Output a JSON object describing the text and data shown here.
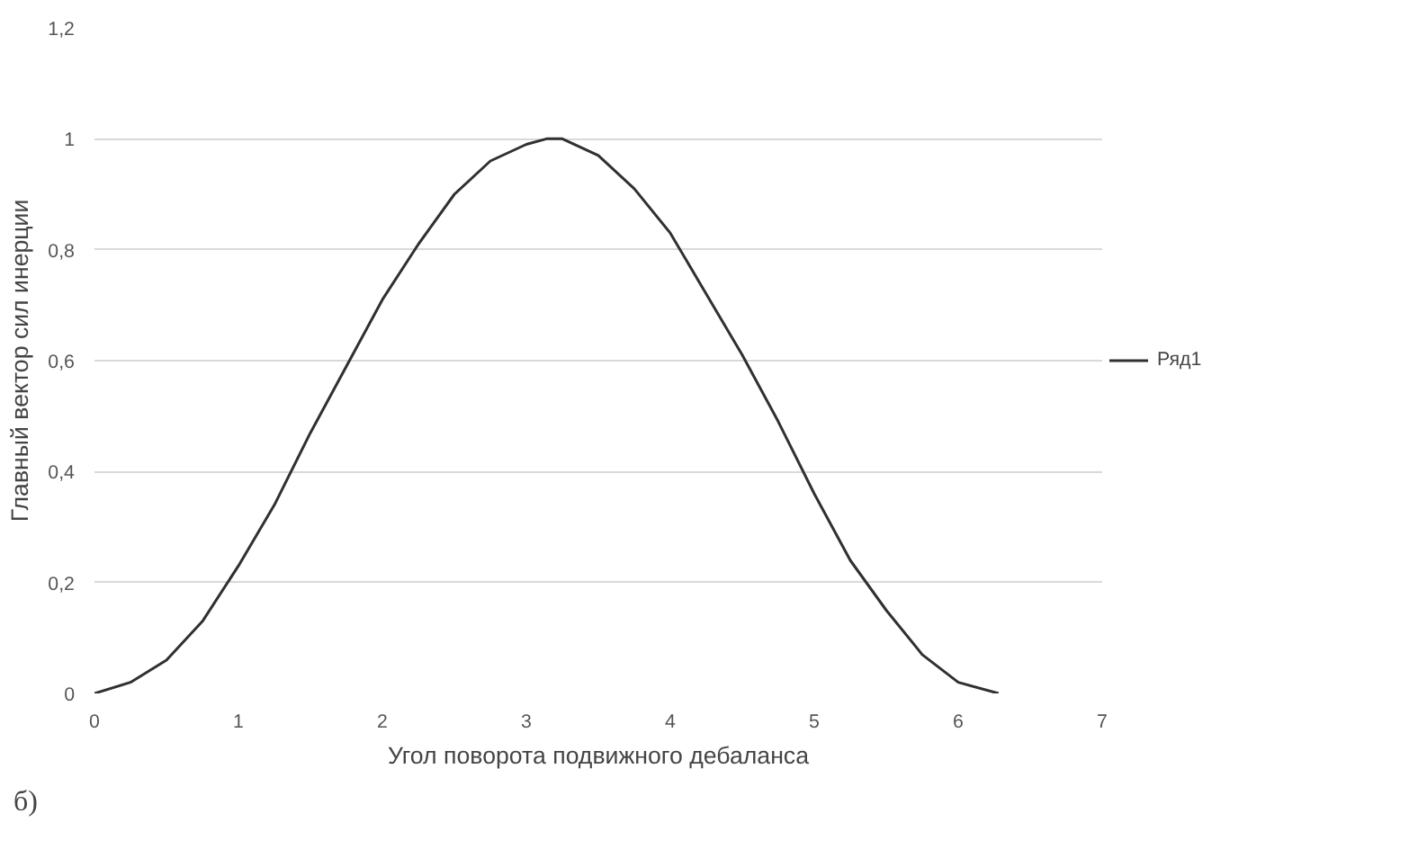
{
  "chart_data": {
    "type": "line",
    "xlabel": "Угол поворота подвижного дебаланса",
    "ylabel": "Главный вектор сил инерции",
    "x": [
      0,
      0.25,
      0.5,
      0.75,
      1,
      1.25,
      1.5,
      1.75,
      2,
      2.25,
      2.5,
      2.75,
      3,
      3.14,
      3.25,
      3.5,
      3.75,
      4,
      4.25,
      4.5,
      4.75,
      5,
      5.25,
      5.5,
      5.75,
      6,
      6.28
    ],
    "series": [
      {
        "name": "Ряд1",
        "color": "#303030",
        "values": [
          0,
          0.02,
          0.06,
          0.13,
          0.23,
          0.34,
          0.47,
          0.59,
          0.71,
          0.81,
          0.9,
          0.96,
          0.99,
          1,
          1,
          0.97,
          0.91,
          0.83,
          0.72,
          0.61,
          0.49,
          0.36,
          0.24,
          0.15,
          0.07,
          0.02,
          0
        ]
      }
    ],
    "xlim": [
      0,
      7
    ],
    "xticks": [
      0,
      1,
      2,
      3,
      4,
      5,
      6,
      7
    ],
    "ylim": [
      0,
      1.2
    ],
    "yticks": [
      {
        "value": 0,
        "label": "0"
      },
      {
        "value": 0.2,
        "label": "0,2"
      },
      {
        "value": 0.4,
        "label": "0,4"
      },
      {
        "value": 0.6,
        "label": "0,6"
      },
      {
        "value": 0.8,
        "label": "0,8"
      },
      {
        "value": 1,
        "label": "1"
      },
      {
        "value": 1.2,
        "label": "1,2"
      }
    ],
    "grid": "y",
    "legend": "right",
    "marker": "none",
    "line_style": "solid",
    "annotations": [
      "б)"
    ]
  }
}
